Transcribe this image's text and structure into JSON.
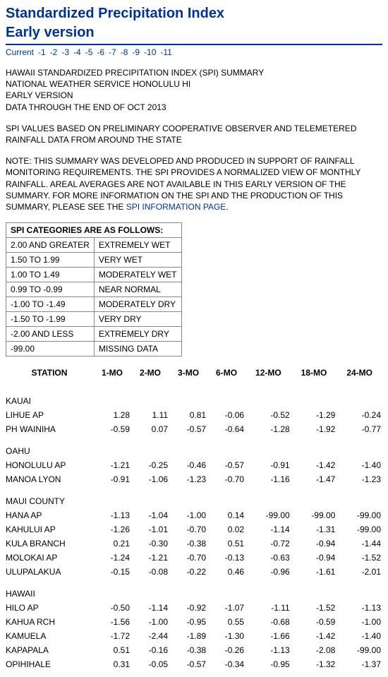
{
  "title_line1": "Standardized Precipitation Index",
  "title_line2": "Early version",
  "nav": [
    "Current",
    "-1",
    "-2",
    "-3",
    "-4",
    "-5",
    "-6",
    "-7",
    "-8",
    "-9",
    "-10",
    "-11"
  ],
  "header_lines": [
    "HAWAII STANDARDIZED PRECIPITATION INDEX (SPI) SUMMARY",
    "NATIONAL WEATHER SERVICE HONOLULU HI",
    "EARLY VERSION",
    "DATA THROUGH THE END OF OCT 2013"
  ],
  "basis_lines": [
    "SPI VALUES BASED ON PRELIMINARY COOPERATIVE OBSERVER AND TELEMETERED",
    "RAINFALL DATA FROM AROUND THE STATE"
  ],
  "note_prefix": "NOTE: THIS SUMMARY WAS DEVELOPED AND PRODUCED IN SUPPORT OF RAINFALL MONITORING REQUIREMENTS. THE SPI PROVIDES A NORMALIZED VIEW OF MONTHLY RAINFALL. AREAL AVERAGES ARE NOT AVAILABLE IN THIS EARLY VERSION OF THE SUMMARY. FOR MORE INFORMATION ON THE SPI AND THE PRODUCTION OF THIS SUMMARY, PLEASE SEE THE ",
  "note_link": "SPI INFORMATION PAGE",
  "note_suffix": ".",
  "cat_header": "SPI CATEGORIES ARE AS FOLLOWS:",
  "categories": [
    [
      "2.00 AND GREATER",
      "EXTREMELY WET"
    ],
    [
      "1.50 TO 1.99",
      "VERY WET"
    ],
    [
      "1.00 TO 1.49",
      "MODERATELY WET"
    ],
    [
      "0.99 TO -0.99",
      "NEAR NORMAL"
    ],
    [
      "-1.00 TO -1.49",
      "MODERATELY DRY"
    ],
    [
      "-1.50 TO -1.99",
      "VERY DRY"
    ],
    [
      "-2.00 AND LESS",
      "EXTREMELY DRY"
    ],
    [
      "-99.00",
      "MISSING DATA"
    ]
  ],
  "data_columns": [
    "STATION",
    "1-MO",
    "2-MO",
    "3-MO",
    "6-MO",
    "12-MO",
    "18-MO",
    "24-MO"
  ],
  "regions": [
    {
      "name": "KAUAI",
      "stations": [
        {
          "name": "LIHUE AP",
          "v": [
            "1.28",
            "1.11",
            "0.81",
            "-0.06",
            "-0.52",
            "-1.29",
            "-0.24"
          ]
        },
        {
          "name": "PH WAINIHA",
          "v": [
            "-0.59",
            "0.07",
            "-0.57",
            "-0.64",
            "-1.28",
            "-1.92",
            "-0.77"
          ]
        }
      ]
    },
    {
      "name": "OAHU",
      "stations": [
        {
          "name": "HONOLULU AP",
          "v": [
            "-1.21",
            "-0.25",
            "-0.46",
            "-0.57",
            "-0.91",
            "-1.42",
            "-1.40"
          ]
        },
        {
          "name": "MANOA LYON",
          "v": [
            "-0.91",
            "-1.06",
            "-1.23",
            "-0.70",
            "-1.16",
            "-1.47",
            "-1.23"
          ]
        }
      ]
    },
    {
      "name": "MAUI COUNTY",
      "stations": [
        {
          "name": "HANA AP",
          "v": [
            "-1.13",
            "-1.04",
            "-1.00",
            "0.14",
            "-99.00",
            "-99.00",
            "-99.00"
          ]
        },
        {
          "name": "KAHULUI AP",
          "v": [
            "-1.26",
            "-1.01",
            "-0.70",
            "0.02",
            "-1.14",
            "-1.31",
            "-99.00"
          ]
        },
        {
          "name": "KULA BRANCH",
          "v": [
            "0.21",
            "-0.30",
            "-0.38",
            "0.51",
            "-0.72",
            "-0.94",
            "-1.44"
          ]
        },
        {
          "name": "MOLOKAI AP",
          "v": [
            "-1.24",
            "-1.21",
            "-0.70",
            "-0.13",
            "-0.63",
            "-0.94",
            "-1.52"
          ]
        },
        {
          "name": "ULUPALAKUA",
          "v": [
            "-0.15",
            "-0.08",
            "-0.22",
            "0.46",
            "-0.96",
            "-1.61",
            "-2.01"
          ]
        }
      ]
    },
    {
      "name": "HAWAII",
      "stations": [
        {
          "name": "HILO AP",
          "v": [
            "-0.50",
            "-1.14",
            "-0.92",
            "-1.07",
            "-1.11",
            "-1.52",
            "-1.13"
          ]
        },
        {
          "name": "KAHUA RCH",
          "v": [
            "-1.56",
            "-1.00",
            "-0.95",
            "0.55",
            "-0.68",
            "-0.59",
            "-1.00"
          ]
        },
        {
          "name": "KAMUELA",
          "v": [
            "-1.72",
            "-2.44",
            "-1.89",
            "-1.30",
            "-1.66",
            "-1.42",
            "-1.40"
          ]
        },
        {
          "name": "KAPAPALA",
          "v": [
            "0.51",
            "-0.16",
            "-0.38",
            "-0.26",
            "-1.13",
            "-2.08",
            "-99.00"
          ]
        },
        {
          "name": "OPIHIHALE",
          "v": [
            "0.31",
            "-0.05",
            "-0.57",
            "-0.34",
            "-0.95",
            "-1.32",
            "-1.37"
          ]
        }
      ]
    }
  ],
  "colors": {
    "heading": "#003399",
    "link": "#003399",
    "border": "#888888",
    "text": "#000000",
    "background": "#ffffff"
  }
}
